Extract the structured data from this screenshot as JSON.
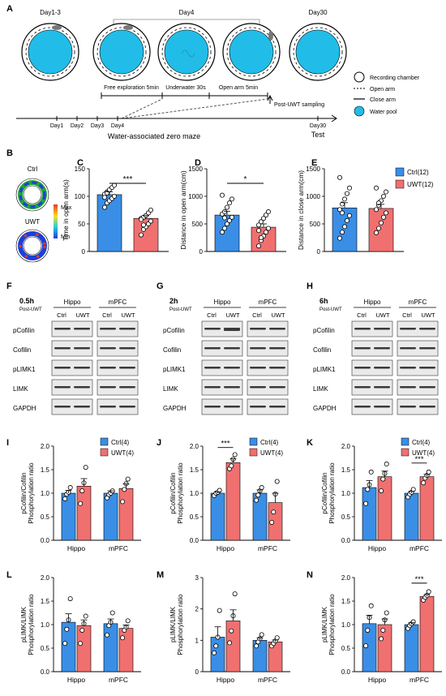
{
  "colors": {
    "ctrl": "#3a8ee6",
    "uwt": "#f07070",
    "pool": "#21bde8",
    "band": "#3a3a3a"
  },
  "panel_a": {
    "letter": "A",
    "day_labels": [
      "Day1-3",
      "Day4",
      "Day30"
    ],
    "phases": [
      "Free exploration 5min",
      "Underwater 30s",
      "Open arm 5min"
    ],
    "post_uwt": "Post-UWT sampling",
    "timeline_days": [
      "Day1",
      "Day2",
      "Day3",
      "Day4"
    ],
    "end_day": "Day30",
    "end_label": "Test",
    "title": "Water-associated zero maze",
    "legend": [
      "Recording chamber",
      "Open arm",
      "Close arm",
      "Water pool"
    ]
  },
  "panel_b": {
    "letter": "B",
    "ctrl": "Ctrl",
    "uwt": "UWT",
    "max": "Max",
    "min": "Min"
  },
  "behavior_legend": {
    "ctrl": "Ctrl(12)",
    "uwt": "UWT(12)"
  },
  "wb_legend": {
    "ctrl": "Ctrl(4)",
    "uwt": "UWT(4)"
  },
  "blots": [
    {
      "letter": "F",
      "time": "0.5h",
      "sub": "Post-UWT"
    },
    {
      "letter": "G",
      "time": "2h",
      "sub": "Post-UWT"
    },
    {
      "letter": "H",
      "time": "6h",
      "sub": "Post-UWT"
    }
  ],
  "blot_regions": [
    "Hippo",
    "mPFC"
  ],
  "blot_groups": [
    "Ctrl",
    "UWT"
  ],
  "blot_rows": [
    "pCofilin",
    "Cofilin",
    "pLIMK1",
    "LIMK",
    "GAPDH"
  ],
  "chart_data": [
    {
      "letter": "C",
      "type": "bar",
      "ylabel": "Time in open arm(s)",
      "ylim": [
        0,
        150
      ],
      "yticks": [
        0,
        50,
        100,
        150
      ],
      "categories": [
        "Ctrl",
        "UWT"
      ],
      "values": [
        103,
        60
      ],
      "errors": [
        5,
        5
      ],
      "sig": "***",
      "points": [
        [
          80,
          88,
          92,
          96,
          100,
          104,
          108,
          112,
          116,
          120,
          98,
          106
        ],
        [
          30,
          40,
          45,
          50,
          55,
          60,
          62,
          65,
          70,
          75,
          58,
          48
        ]
      ]
    },
    {
      "letter": "D",
      "type": "bar",
      "ylabel": "Distance in open arm(cm)",
      "ylim": [
        0,
        1500
      ],
      "yticks": [
        0,
        500,
        1000,
        1500
      ],
      "categories": [
        "Ctrl",
        "UWT"
      ],
      "values": [
        660,
        440
      ],
      "errors": [
        70,
        60
      ],
      "sig": "*",
      "points": [
        [
          350,
          420,
          500,
          560,
          620,
          680,
          720,
          800,
          880,
          950,
          1020,
          610
        ],
        [
          100,
          200,
          280,
          350,
          420,
          480,
          540,
          600,
          660,
          720,
          380,
          250
        ]
      ]
    },
    {
      "letter": "E",
      "type": "bar",
      "ylabel": "Distance in close arm(cm)",
      "ylim": [
        0,
        1500
      ],
      "yticks": [
        0,
        500,
        1000,
        1500
      ],
      "categories": [
        "Ctrl",
        "UWT"
      ],
      "values": [
        790,
        780
      ],
      "errors": [
        95,
        75
      ],
      "sig": "",
      "points": [
        [
          240,
          350,
          450,
          560,
          650,
          760,
          860,
          950,
          1050,
          1150,
          1340,
          700
        ],
        [
          340,
          420,
          520,
          620,
          700,
          760,
          840,
          920,
          1000,
          1080,
          1150,
          880
        ]
      ]
    },
    {
      "letter": "I",
      "type": "grouped_bar",
      "ylabel": "pCofilin/Cofilin Phosphorylation ratio",
      "ylim": [
        0,
        2.0
      ],
      "yticks": [
        0.0,
        0.5,
        1.0,
        1.5,
        2.0
      ],
      "categories": [
        "Hippo",
        "mPFC"
      ],
      "legend": true,
      "series": [
        {
          "name": "Ctrl(4)",
          "values": [
            1.0,
            1.0
          ],
          "errors": [
            0.06,
            0.05
          ],
          "points": [
            [
              0.88,
              0.98,
              1.02,
              1.12
            ],
            [
              0.9,
              0.97,
              1.0,
              1.05
            ]
          ]
        },
        {
          "name": "UWT(4)",
          "values": [
            1.15,
            1.1
          ],
          "errors": [
            0.16,
            0.1
          ],
          "points": [
            [
              0.78,
              1.05,
              1.22,
              1.55
            ],
            [
              0.82,
              1.08,
              1.2,
              1.3
            ]
          ]
        }
      ],
      "sig": []
    },
    {
      "letter": "J",
      "type": "grouped_bar",
      "ylabel": "pCofilin/Cofilin Phosphorylation ratio",
      "ylim": [
        0,
        2.0
      ],
      "yticks": [
        0.0,
        0.5,
        1.0,
        1.5,
        2.0
      ],
      "categories": [
        "Hippo",
        "mPFC"
      ],
      "legend": true,
      "series": [
        {
          "name": "Ctrl(4)",
          "values": [
            1.0,
            1.0
          ],
          "errors": [
            0.03,
            0.07
          ],
          "points": [
            [
              0.95,
              1.0,
              1.02,
              1.06
            ],
            [
              0.85,
              0.96,
              1.05,
              1.12
            ]
          ]
        },
        {
          "name": "UWT(4)",
          "values": [
            1.65,
            0.8
          ],
          "errors": [
            0.08,
            0.2
          ],
          "points": [
            [
              1.52,
              1.58,
              1.72,
              1.82
            ],
            [
              0.38,
              0.6,
              0.98,
              1.25
            ]
          ]
        }
      ],
      "sig": [
        {
          "category": 0,
          "label": "***"
        }
      ]
    },
    {
      "letter": "K",
      "type": "grouped_bar",
      "ylabel": "pCofilin/Cofilin Phosphorylation ratio",
      "ylim": [
        0,
        2.0
      ],
      "yticks": [
        0.0,
        0.5,
        1.0,
        1.5,
        2.0
      ],
      "categories": [
        "Hippo",
        "mPFC"
      ],
      "legend": true,
      "series": [
        {
          "name": "Ctrl(4)",
          "values": [
            1.12,
            1.0
          ],
          "errors": [
            0.15,
            0.04
          ],
          "points": [
            [
              0.78,
              1.08,
              1.18,
              1.45
            ],
            [
              0.92,
              0.98,
              1.02,
              1.08
            ]
          ]
        },
        {
          "name": "UWT(4)",
          "values": [
            1.35,
            1.35
          ],
          "errors": [
            0.12,
            0.05
          ],
          "points": [
            [
              1.05,
              1.3,
              1.42,
              1.62
            ],
            [
              1.22,
              1.32,
              1.38,
              1.45
            ]
          ]
        }
      ],
      "sig": [
        {
          "category": 1,
          "label": "***"
        }
      ]
    },
    {
      "letter": "L",
      "type": "grouped_bar",
      "ylabel": "pLIMK/LIMK Phosphorylation ratio",
      "ylim": [
        0,
        2.0
      ],
      "yticks": [
        0.0,
        0.5,
        1.0,
        1.5,
        2.0
      ],
      "categories": [
        "Hippo",
        "mPFC"
      ],
      "legend": false,
      "series": [
        {
          "name": "Ctrl(4)",
          "values": [
            1.05,
            1.02
          ],
          "errors": [
            0.18,
            0.1
          ],
          "points": [
            [
              0.6,
              0.9,
              1.1,
              1.55
            ],
            [
              0.78,
              0.98,
              1.05,
              1.25
            ]
          ]
        },
        {
          "name": "UWT(4)",
          "values": [
            0.98,
            0.92
          ],
          "errors": [
            0.12,
            0.07
          ],
          "points": [
            [
              0.6,
              0.88,
              1.02,
              1.18
            ],
            [
              0.72,
              0.88,
              0.95,
              1.08
            ]
          ]
        }
      ],
      "sig": []
    },
    {
      "letter": "M",
      "type": "grouped_bar",
      "ylabel": "pLIMK/LIMK Phosphorylation ratio",
      "ylim": [
        0,
        3
      ],
      "yticks": [
        0,
        1,
        2,
        3
      ],
      "categories": [
        "Hippo",
        "mPFC"
      ],
      "legend": false,
      "series": [
        {
          "name": "Ctrl(4)",
          "values": [
            1.1,
            1.0
          ],
          "errors": [
            0.33,
            0.08
          ],
          "points": [
            [
              0.6,
              0.82,
              1.1,
              1.95
            ],
            [
              0.82,
              0.95,
              1.05,
              1.18
            ]
          ]
        },
        {
          "name": "UWT(4)",
          "values": [
            1.62,
            0.95
          ],
          "errors": [
            0.35,
            0.06
          ],
          "points": [
            [
              0.92,
              1.3,
              1.78,
              2.48
            ],
            [
              0.82,
              0.9,
              0.98,
              1.08
            ]
          ]
        }
      ],
      "sig": []
    },
    {
      "letter": "N",
      "type": "grouped_bar",
      "ylabel": "pLIMK/LIMK Phosphorylation ratio",
      "ylim": [
        0,
        2.0
      ],
      "yticks": [
        0.0,
        0.5,
        1.0,
        1.5,
        2.0
      ],
      "categories": [
        "Hippo",
        "mPFC"
      ],
      "legend": false,
      "series": [
        {
          "name": "Ctrl(4)",
          "values": [
            1.02,
            1.0
          ],
          "errors": [
            0.18,
            0.04
          ],
          "points": [
            [
              0.55,
              0.88,
              1.15,
              1.4
            ],
            [
              0.92,
              0.98,
              1.02,
              1.06
            ]
          ]
        },
        {
          "name": "UWT(4)",
          "values": [
            1.0,
            1.6
          ],
          "errors": [
            0.12,
            0.04
          ],
          "points": [
            [
              0.7,
              0.88,
              1.1,
              1.25
            ],
            [
              1.52,
              1.58,
              1.62,
              1.7
            ]
          ]
        }
      ],
      "sig": [
        {
          "category": 1,
          "label": "***"
        }
      ]
    }
  ]
}
